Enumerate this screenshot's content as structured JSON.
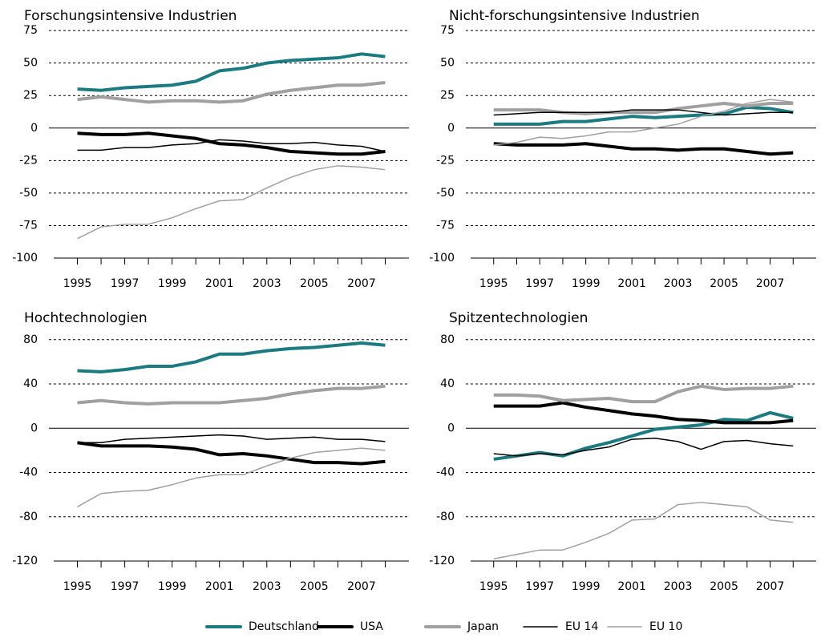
{
  "chart_data": [
    {
      "type": "line",
      "title": "Forschungsintensive Industrien",
      "x": [
        1995,
        1996,
        1997,
        1998,
        1999,
        2000,
        2001,
        2002,
        2003,
        2004,
        2005,
        2006,
        2007,
        2008
      ],
      "xlim": [
        1994,
        2009
      ],
      "xticks": [
        1995,
        1997,
        1999,
        2001,
        2003,
        2005,
        2007
      ],
      "ylim": [
        -100,
        80
      ],
      "yticks": [
        -100,
        -75,
        -50,
        -25,
        0,
        25,
        50,
        75
      ],
      "grid": true,
      "series": [
        {
          "name": "Deutschland",
          "color": "#1b7b80",
          "width": 4,
          "values": [
            30,
            29,
            31,
            32,
            33,
            36,
            44,
            46,
            50,
            52,
            53,
            54,
            57,
            55
          ]
        },
        {
          "name": "USA",
          "color": "#000000",
          "width": 4,
          "values": [
            -4,
            -5,
            -5,
            -4,
            -6,
            -8,
            -12,
            -13,
            -15,
            -18,
            -19,
            -20,
            -20,
            -18
          ]
        },
        {
          "name": "Japan",
          "color": "#a0a0a0",
          "width": 4,
          "values": [
            22,
            24,
            22,
            20,
            21,
            21,
            20,
            21,
            26,
            29,
            31,
            33,
            33,
            35
          ]
        },
        {
          "name": "EU 14",
          "color": "#000000",
          "width": 1.5,
          "values": [
            -17,
            -17,
            -15,
            -15,
            -13,
            -12,
            -9,
            -10,
            -12,
            -12,
            -11,
            -13,
            -14,
            -18
          ]
        },
        {
          "name": "EU 10",
          "color": "#a0a0a0",
          "width": 1.5,
          "values": [
            -85,
            -76,
            -74,
            -74,
            -69,
            -62,
            -56,
            -55,
            -46,
            -38,
            -32,
            -29,
            -30,
            -32
          ]
        }
      ]
    },
    {
      "type": "line",
      "title": "Nicht-forschungsintensive Industrien",
      "x": [
        1995,
        1996,
        1997,
        1998,
        1999,
        2000,
        2001,
        2002,
        2003,
        2004,
        2005,
        2006,
        2007,
        2008
      ],
      "xlim": [
        1994,
        2009
      ],
      "xticks": [
        1995,
        1997,
        1999,
        2001,
        2003,
        2005,
        2007
      ],
      "ylim": [
        -100,
        80
      ],
      "yticks": [
        -100,
        -75,
        -50,
        -25,
        0,
        25,
        50,
        75
      ],
      "grid": true,
      "series": [
        {
          "name": "Deutschland",
          "color": "#1b7b80",
          "width": 4,
          "values": [
            3,
            3,
            3,
            5,
            5,
            7,
            9,
            8,
            9,
            10,
            11,
            16,
            15,
            12
          ]
        },
        {
          "name": "USA",
          "color": "#000000",
          "width": 4,
          "values": [
            -12,
            -13,
            -13,
            -13,
            -12,
            -14,
            -16,
            -16,
            -17,
            -16,
            -16,
            -18,
            -20,
            -19
          ]
        },
        {
          "name": "Japan",
          "color": "#a0a0a0",
          "width": 4,
          "values": [
            14,
            14,
            14,
            12,
            11,
            12,
            12,
            12,
            15,
            17,
            19,
            17,
            19,
            19
          ]
        },
        {
          "name": "EU 14",
          "color": "#000000",
          "width": 1.5,
          "values": [
            10,
            11,
            12,
            12,
            12,
            12,
            14,
            14,
            14,
            12,
            10,
            11,
            12,
            12
          ]
        },
        {
          "name": "EU 10",
          "color": "#a0a0a0",
          "width": 1.5,
          "values": [
            -13,
            -11,
            -7,
            -8,
            -6,
            -3,
            -3,
            0,
            3,
            9,
            13,
            19,
            22,
            20
          ]
        }
      ]
    },
    {
      "type": "line",
      "title": "Hochtechnologien",
      "x": [
        1995,
        1996,
        1997,
        1998,
        1999,
        2000,
        2001,
        2002,
        2003,
        2004,
        2005,
        2006,
        2007,
        2008
      ],
      "xlim": [
        1994,
        2009
      ],
      "xticks": [
        1995,
        1997,
        1999,
        2001,
        2003,
        2005,
        2007
      ],
      "ylim": [
        -120,
        90
      ],
      "yticks": [
        -120,
        -80,
        -40,
        0,
        40,
        80
      ],
      "grid": true,
      "series": [
        {
          "name": "Deutschland",
          "color": "#1b7b80",
          "width": 4,
          "values": [
            52,
            51,
            53,
            56,
            56,
            60,
            67,
            67,
            70,
            72,
            73,
            75,
            77,
            75
          ]
        },
        {
          "name": "USA",
          "color": "#000000",
          "width": 4,
          "values": [
            -13,
            -16,
            -16,
            -16,
            -17,
            -19,
            -24,
            -23,
            -25,
            -28,
            -31,
            -31,
            -32,
            -30
          ]
        },
        {
          "name": "Japan",
          "color": "#a0a0a0",
          "width": 4,
          "values": [
            23,
            25,
            23,
            22,
            23,
            23,
            23,
            25,
            27,
            31,
            34,
            36,
            36,
            38
          ]
        },
        {
          "name": "EU 14",
          "color": "#000000",
          "width": 1.5,
          "values": [
            -13,
            -13,
            -10,
            -9,
            -8,
            -7,
            -6,
            -7,
            -10,
            -9,
            -8,
            -10,
            -10,
            -12
          ]
        },
        {
          "name": "EU 10",
          "color": "#a0a0a0",
          "width": 1.5,
          "values": [
            -71,
            -59,
            -57,
            -56,
            -51,
            -45,
            -42,
            -42,
            -34,
            -27,
            -22,
            -20,
            -18,
            -20
          ]
        }
      ]
    },
    {
      "type": "line",
      "title": "Spitzentechnologien",
      "x": [
        1995,
        1996,
        1997,
        1998,
        1999,
        2000,
        2001,
        2002,
        2003,
        2004,
        2005,
        2006,
        2007,
        2008
      ],
      "xlim": [
        1994,
        2009
      ],
      "xticks": [
        1995,
        1997,
        1999,
        2001,
        2003,
        2005,
        2007
      ],
      "ylim": [
        -120,
        90
      ],
      "yticks": [
        -120,
        -80,
        -40,
        0,
        40,
        80
      ],
      "grid": true,
      "series": [
        {
          "name": "Deutschland",
          "color": "#1b7b80",
          "width": 4,
          "values": [
            -28,
            -25,
            -22,
            -25,
            -18,
            -13,
            -7,
            -1,
            1,
            3,
            8,
            7,
            14,
            9
          ]
        },
        {
          "name": "USA",
          "color": "#000000",
          "width": 4,
          "values": [
            20,
            20,
            20,
            23,
            19,
            16,
            13,
            11,
            8,
            7,
            5,
            5,
            5,
            7
          ]
        },
        {
          "name": "Japan",
          "color": "#a0a0a0",
          "width": 4,
          "values": [
            30,
            30,
            29,
            25,
            26,
            27,
            24,
            24,
            33,
            38,
            35,
            36,
            36,
            38
          ]
        },
        {
          "name": "EU 14",
          "color": "#000000",
          "width": 1.5,
          "values": [
            -23,
            -25,
            -23,
            -24,
            -20,
            -17,
            -10,
            -9,
            -12,
            -19,
            -12,
            -11,
            -14,
            -16
          ]
        },
        {
          "name": "EU 10",
          "color": "#a0a0a0",
          "width": 1.5,
          "values": [
            -118,
            -114,
            -110,
            -110,
            -103,
            -95,
            -83,
            -82,
            -69,
            -67,
            -69,
            -71,
            -83,
            -85
          ]
        }
      ]
    }
  ]
}
